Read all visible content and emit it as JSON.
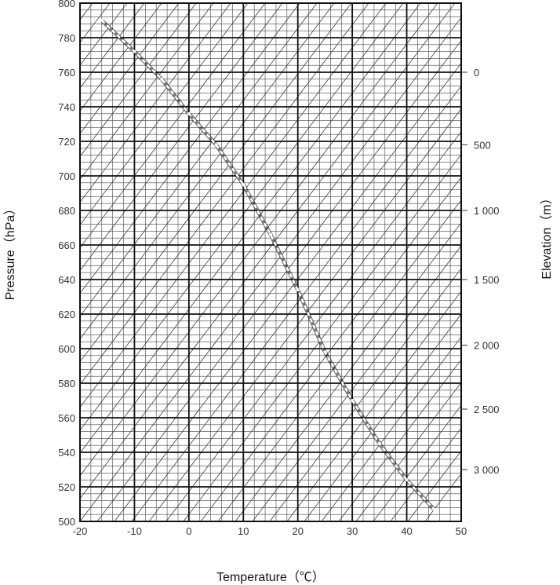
{
  "chart_data": {
    "type": "line",
    "title": "",
    "xlabel": "Temperature（℃）",
    "ylabel": "Pressure（hPa）",
    "y2label": "Elevation（m）",
    "xlim": [
      -20,
      50
    ],
    "ylim": [
      500,
      800
    ],
    "x_ticks": [
      -20,
      -10,
      0,
      10,
      20,
      30,
      40,
      50
    ],
    "x_tick_labels": [
      "-20",
      "-10",
      "0",
      "10",
      "20",
      "30",
      "40",
      "50"
    ],
    "y_ticks": [
      500,
      520,
      540,
      560,
      580,
      600,
      620,
      640,
      660,
      680,
      700,
      720,
      740,
      760,
      780,
      800
    ],
    "y_tick_labels": [
      "500",
      "520",
      "540",
      "560",
      "580",
      "600",
      "620",
      "640",
      "660",
      "680",
      "700",
      "720",
      "740",
      "760",
      "780",
      "800"
    ],
    "y2_ticks": [
      {
        "label": "0",
        "pressure": 760
      },
      {
        "label": "500",
        "pressure": 718
      },
      {
        "label": "1 000",
        "pressure": 680
      },
      {
        "label": "1 500",
        "pressure": 640
      },
      {
        "label": "2 000",
        "pressure": 602
      },
      {
        "label": "2 500",
        "pressure": 565
      },
      {
        "label": "3 000",
        "pressure": 530
      }
    ],
    "grid": true,
    "minor_grid": {
      "x_step": 2,
      "y_step": 4
    },
    "background_lines": "diagonal guide lines",
    "series": [
      {
        "style": "dashed-white",
        "x": [
          -16,
          -10,
          -5,
          0,
          5,
          10,
          15,
          20,
          25,
          30,
          35,
          40,
          45
        ],
        "y": [
          790,
          772,
          756,
          736,
          718,
          695,
          666,
          634,
          598,
          570,
          545,
          524,
          507
        ]
      }
    ]
  }
}
